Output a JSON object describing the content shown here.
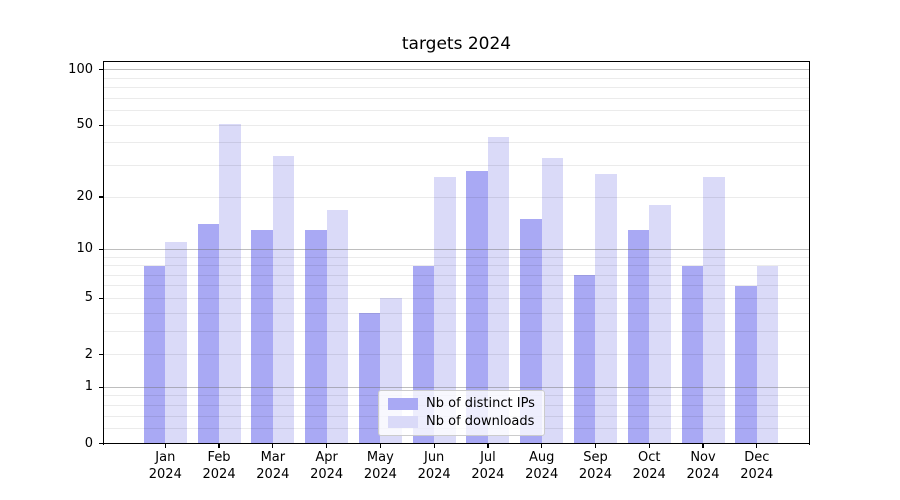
{
  "chart": {
    "title": "targets 2024"
  },
  "chart_data": {
    "type": "bar",
    "title": "targets 2024",
    "categories": [
      "Jan",
      "Feb",
      "Mar",
      "Apr",
      "May",
      "Jun",
      "Jul",
      "Aug",
      "Sep",
      "Oct",
      "Nov",
      "Dec"
    ],
    "category_year": "2024",
    "series": [
      {
        "name": "Nb of distinct IPs",
        "color": "#a9a9f4",
        "values": [
          8,
          14,
          13,
          13,
          4,
          8,
          28,
          15,
          7,
          13,
          8,
          6
        ]
      },
      {
        "name": "Nb of downloads",
        "color": "#dadaf8",
        "values": [
          11,
          51,
          34,
          17,
          5,
          26,
          43,
          33,
          27,
          18,
          26,
          8
        ]
      }
    ],
    "xlabel": "",
    "ylabel": "",
    "yscale": "log1p",
    "y_ticks": [
      0,
      1,
      2,
      5,
      10,
      20,
      50,
      100
    ],
    "y_major_gridlines": [
      1,
      10,
      100
    ],
    "y_minor_gridlines": [
      0.2,
      0.4,
      0.6,
      0.8,
      2,
      3,
      4,
      5,
      6,
      7,
      8,
      9,
      20,
      30,
      40,
      50,
      60,
      70,
      80,
      90
    ],
    "ylim": [
      0,
      100
    ],
    "grid": true,
    "legend_position": "lower center"
  }
}
